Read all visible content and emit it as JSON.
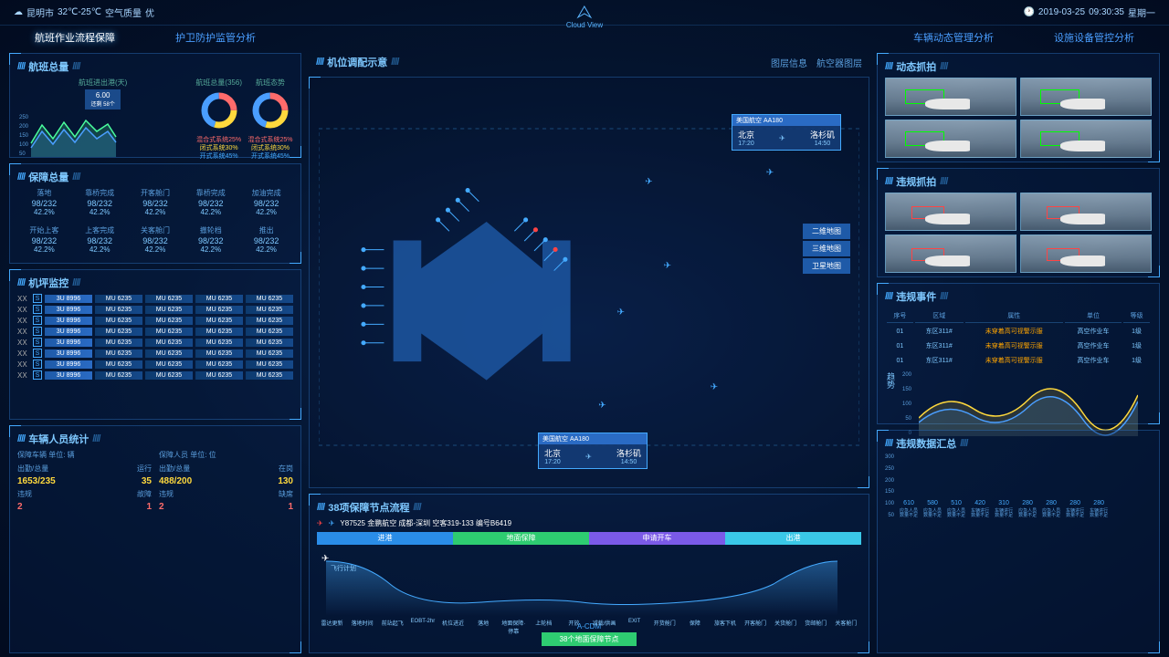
{
  "header": {
    "city": "昆明市",
    "temp": "32℃-25℃",
    "air_label": "空气质量",
    "air_val": "优",
    "date": "2019-03-25",
    "time": "09:30:35",
    "weekday": "星期一",
    "logo": "Cloud View"
  },
  "nav": {
    "left": [
      "航班作业流程保障",
      "护卫防护监管分析"
    ],
    "right": [
      "车辆动态管理分析",
      "设施设备管控分析"
    ],
    "active": 0
  },
  "flight_total": {
    "title": "航班总量",
    "sub": "航班进出港(天)",
    "badge_num": "6.00",
    "badge_txt": "还剩 58个",
    "y_ticks": [
      250,
      200,
      150,
      100,
      50,
      0
    ],
    "series": [
      120,
      200,
      140,
      220,
      160,
      240,
      180,
      210,
      150
    ],
    "color1": "#4aff9e",
    "color2": "#4a9eff",
    "donut1_title": "航班总量(356)",
    "donut2_title": "航班态势",
    "donut_colors": [
      "#ff6b6b",
      "#ffd93d",
      "#4a9eff",
      "#2ecc71"
    ],
    "donut_values": [
      25,
      30,
      45
    ],
    "legend": [
      "混合式系统25%",
      "闭式系统30%",
      "开式系统45%"
    ]
  },
  "guarantee": {
    "title": "保障总量",
    "row1_labels": [
      "落地",
      "靠桥完成",
      "开客舱门",
      "靠桥完成",
      "加油完成"
    ],
    "row2_labels": [
      "开始上客",
      "上客完成",
      "关客舱门",
      "撤轮档",
      "推出"
    ],
    "value": "98/232",
    "pct": "42.2%"
  },
  "monitor": {
    "title": "机坪监控",
    "tag": "XX",
    "s": "S",
    "cells": [
      "3U 8996",
      "MU 6235",
      "MU 6235",
      "MU 6235",
      "MU 6235"
    ],
    "rows": 8
  },
  "personnel": {
    "title": "车辆人员统计",
    "col1_h": "保障车辆  单位: 辆",
    "col2_h": "保障人员  单位: 位",
    "l1": "出勤/总量",
    "v1": "1653/235",
    "l2": "运行",
    "v2": "35",
    "l3": "出勤/总量",
    "v3": "488/200",
    "l4": "在岗",
    "v4": "130",
    "l5": "违规",
    "v5": "2",
    "l6": "故障",
    "v6": "1",
    "l7": "违规",
    "v7": "2",
    "l8": "缺席",
    "v8": "1"
  },
  "map": {
    "title": "机位调配示意",
    "layer_info": "图层信息",
    "aircraft_layer": "航空器图层",
    "card_airline": "美国航空  AA180",
    "card_from": "北京",
    "card_from_t": "17:20",
    "card_to": "洛杉矶",
    "card_to_t": "14:50",
    "btns": [
      "二维地图",
      "三维地图",
      "卫星地图"
    ]
  },
  "flow": {
    "title": "38项保障节点流程",
    "flight": "Y87525 金鹏航空 成都-深圳 空客319-133 编号B6419",
    "phases": [
      "进港",
      "地面保障",
      "申请开车",
      "出港"
    ],
    "plan": "飞行计划",
    "nodes": [
      "雷达更新",
      "落地时间",
      "前站起飞",
      "EOBT-2hr",
      "机位进近",
      "落地",
      "地面保障·停靠",
      "上轮档",
      "开放",
      "减载/供画",
      "EXIT",
      "开货舱门",
      "保障",
      "旅客下机",
      "开客舱门",
      "关货舱门",
      "货邮舱门",
      "关客舱门",
      "开关货舱门",
      "廊桥/客梯撤离",
      "轮档撤离",
      "推出",
      "牵引车对接",
      "滑行",
      "起飞"
    ],
    "acdm": "A-CDM",
    "btn": "38个地面保障节点"
  },
  "capture_dyn": {
    "title": "动态抓拍"
  },
  "capture_vio": {
    "title": "违规抓拍"
  },
  "events": {
    "title": "违规事件",
    "cols": [
      "序号",
      "区域",
      "属性",
      "单位",
      "等级"
    ],
    "rows": [
      [
        "01",
        "东区311#",
        "未穿着高可视警示服",
        "高空作业车",
        "1级"
      ],
      [
        "01",
        "东区311#",
        "未穿着高可视警示服",
        "高空作业车",
        "1级"
      ],
      [
        "01",
        "东区311#",
        "未穿着高可视警示服",
        "高空作业车",
        "1级"
      ]
    ],
    "trend_label": "趋势",
    "trend_y": [
      200,
      150,
      100,
      50,
      0
    ],
    "trend_colors": [
      "#ffd93d",
      "#4a9eff",
      "#2ecc71"
    ]
  },
  "summary": {
    "title": "违规数据汇总",
    "y_ticks": [
      300,
      250,
      200,
      150,
      100,
      50
    ],
    "bars": [
      {
        "v": 610,
        "h": 50,
        "l1": "应急人员",
        "l2": "数量不足"
      },
      {
        "v": 580,
        "h": 95,
        "l1": "应急人员",
        "l2": "数量不足"
      },
      {
        "v": 510,
        "h": 42,
        "l1": "应急人员",
        "l2": "数量不足"
      },
      {
        "v": 420,
        "h": 60,
        "l1": "车辆进行",
        "l2": "数量不足"
      },
      {
        "v": 310,
        "h": 48,
        "l1": "车辆进行",
        "l2": "数量不足"
      },
      {
        "v": 280,
        "h": 30,
        "l1": "应急人员",
        "l2": "数量不足"
      },
      {
        "v": 280,
        "h": 30,
        "l1": "应急人员",
        "l2": "数量不足"
      },
      {
        "v": 280,
        "h": 30,
        "l1": "车辆进行",
        "l2": "数量不足"
      },
      {
        "v": 280,
        "h": 30,
        "l1": "车辆进行",
        "l2": "数量不足"
      }
    ]
  }
}
